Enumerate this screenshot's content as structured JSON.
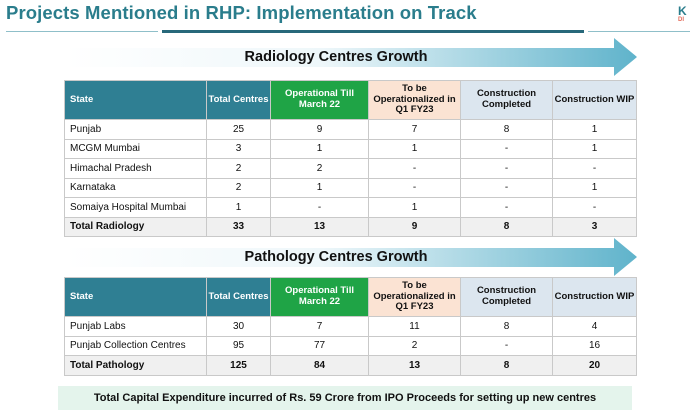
{
  "page": {
    "title": "Projects Mentioned in RHP: Implementation on Track",
    "logo_text": "K",
    "logo_sub": "DI"
  },
  "headers": {
    "state": "State",
    "total": "Total Centres",
    "operational": "Operational Till March 22",
    "to_be_operationalized": "To be Operationalized in Q1 FY23",
    "construction_completed": "Construction Completed",
    "construction_wip": "Construction WIP"
  },
  "radiology": {
    "banner": "Radiology Centres Growth",
    "rows": [
      {
        "state": "Punjab",
        "total": "25",
        "operational": "9",
        "tbo": "7",
        "cc": "8",
        "wip": "1"
      },
      {
        "state": "MCGM Mumbai",
        "total": "3",
        "operational": "1",
        "tbo": "1",
        "cc": "-",
        "wip": "1"
      },
      {
        "state": "Himachal Pradesh",
        "total": "2",
        "operational": "2",
        "tbo": "-",
        "cc": "-",
        "wip": "-"
      },
      {
        "state": "Karnataka",
        "total": "2",
        "operational": "1",
        "tbo": "-",
        "cc": "-",
        "wip": "1"
      },
      {
        "state": "Somaiya Hospital Mumbai",
        "total": "1",
        "operational": "-",
        "tbo": "1",
        "cc": "-",
        "wip": "-"
      }
    ],
    "total_row": {
      "state": "Total Radiology",
      "total": "33",
      "operational": "13",
      "tbo": "9",
      "cc": "8",
      "wip": "3"
    }
  },
  "pathology": {
    "banner": "Pathology Centres Growth",
    "rows": [
      {
        "state": "Punjab Labs",
        "total": "30",
        "operational": "7",
        "tbo": "11",
        "cc": "8",
        "wip": "4"
      },
      {
        "state": "Punjab Collection Centres",
        "total": "95",
        "operational": "77",
        "tbo": "2",
        "cc": "-",
        "wip": "16"
      }
    ],
    "total_row": {
      "state": "Total Pathology",
      "total": "125",
      "operational": "84",
      "tbo": "13",
      "cc": "8",
      "wip": "20"
    }
  },
  "footer": {
    "text": "Total Capital Expenditure incurred of Rs. 59 Crore from IPO Proceeds for setting up new centres"
  },
  "colors": {
    "header_teal": "#2f7f93",
    "operational_green": "#1fa446",
    "peach": "#fbe3d3",
    "light_blue": "#dce6ef",
    "title_teal": "#2a7d8c",
    "footer_green": "#e4f4ec"
  }
}
